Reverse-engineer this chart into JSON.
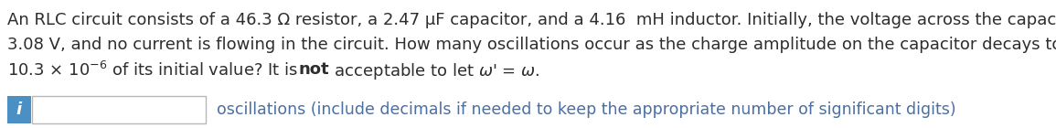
{
  "background_color": "#ffffff",
  "text_color": "#2d2d2d",
  "line1": "An RLC circuit consists of a 46.3 Ω resistor, a 2.47 μF capacitor, and a 4.16  mH inductor. Initially, the voltage across the capacitor is",
  "line2": "3.08 V, and no current is flowing in the circuit. How many oscillations occur as the charge amplitude on the capacitor decays to",
  "answer_label": "oscillations (include decimals if needed to keep the appropriate number of significant digits)",
  "answer_label_color": "#4a6fa5",
  "info_box_color": "#4a90c4",
  "info_char": "i",
  "input_box_border": "#b0b8c0",
  "font_size_main": 13.0,
  "font_size_label": 12.5,
  "fig_width": 11.55,
  "fig_height": 1.4,
  "dpi": 100
}
